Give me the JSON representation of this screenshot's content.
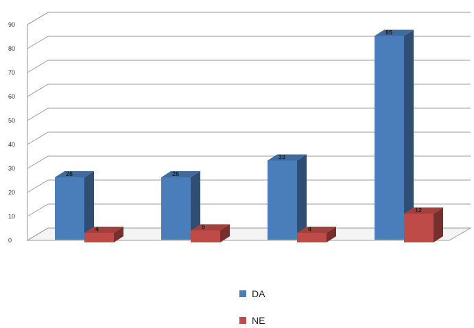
{
  "chart_data": {
    "type": "bar",
    "style": "3d-clustered-column",
    "categories": [
      "",
      "",
      "",
      ""
    ],
    "series": [
      {
        "name": "DA",
        "values": [
          26,
          26,
          33,
          85
        ],
        "color": "#4a7ebb"
      },
      {
        "name": "NE",
        "values": [
          4,
          5,
          4,
          12
        ],
        "color": "#be4b48"
      }
    ],
    "ylim": [
      0,
      90
    ],
    "y_ticks": [
      0,
      10,
      20,
      30,
      40,
      50,
      60,
      70,
      80,
      90
    ],
    "grid": true,
    "legend_position": "bottom",
    "data_labels": true
  }
}
